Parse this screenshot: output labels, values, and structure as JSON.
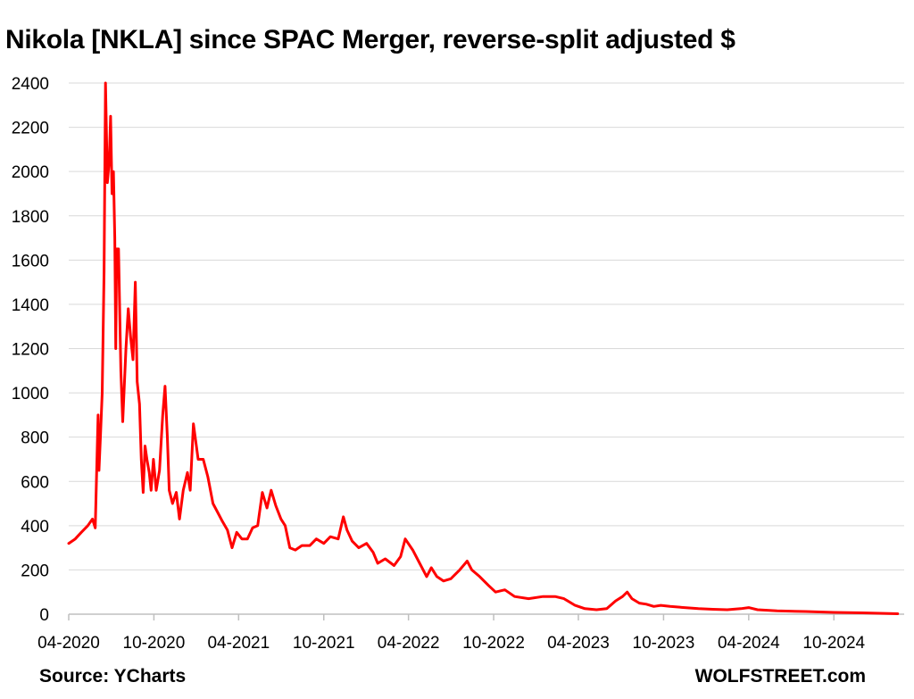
{
  "header": {
    "title": "Nikola [NKLA] since SPAC Merger, reverse-split adjusted $"
  },
  "footer": {
    "source": "Source: YCharts",
    "brand": "WOLFSTREET.com"
  },
  "colors": {
    "line": "#ff0000",
    "grid": "#d9d9d9",
    "axis": "#bfbfbf"
  },
  "chart_data": {
    "type": "line",
    "title": "Nikola [NKLA] since SPAC Merger, reverse-split adjusted $",
    "xlabel": "",
    "ylabel": "",
    "ylim": [
      0,
      2400
    ],
    "y_ticks": [
      0,
      200,
      400,
      600,
      800,
      1000,
      1200,
      1400,
      1600,
      1800,
      2000,
      2200,
      2400
    ],
    "x_ticks": [
      "04-2020",
      "10-2020",
      "04-2021",
      "10-2021",
      "04-2022",
      "10-2022",
      "04-2023",
      "10-2023",
      "04-2024",
      "10-2024"
    ],
    "grid": true,
    "legend": "none",
    "series": [
      {
        "color": "#ff0000",
        "points": [
          [
            "2020-04-01",
            320
          ],
          [
            "2020-04-15",
            340
          ],
          [
            "2020-04-28",
            370
          ],
          [
            "2020-05-12",
            400
          ],
          [
            "2020-05-22",
            430
          ],
          [
            "2020-05-28",
            390
          ],
          [
            "2020-06-03",
            900
          ],
          [
            "2020-06-05",
            650
          ],
          [
            "2020-06-08",
            800
          ],
          [
            "2020-06-12",
            1000
          ],
          [
            "2020-06-16",
            1550
          ],
          [
            "2020-06-19",
            2400
          ],
          [
            "2020-06-23",
            1950
          ],
          [
            "2020-06-27",
            2050
          ],
          [
            "2020-06-30",
            2250
          ],
          [
            "2020-07-03",
            1900
          ],
          [
            "2020-07-06",
            2000
          ],
          [
            "2020-07-09",
            1700
          ],
          [
            "2020-07-11",
            1200
          ],
          [
            "2020-07-13",
            1650
          ],
          [
            "2020-07-17",
            1650
          ],
          [
            "2020-07-22",
            1100
          ],
          [
            "2020-07-26",
            870
          ],
          [
            "2020-08-02",
            1200
          ],
          [
            "2020-08-07",
            1380
          ],
          [
            "2020-08-12",
            1250
          ],
          [
            "2020-08-17",
            1150
          ],
          [
            "2020-08-22",
            1500
          ],
          [
            "2020-08-26",
            1050
          ],
          [
            "2020-08-31",
            950
          ],
          [
            "2020-09-04",
            700
          ],
          [
            "2020-09-08",
            550
          ],
          [
            "2020-09-12",
            760
          ],
          [
            "2020-09-16",
            700
          ],
          [
            "2020-09-21",
            640
          ],
          [
            "2020-09-25",
            560
          ],
          [
            "2020-09-30",
            700
          ],
          [
            "2020-10-06",
            560
          ],
          [
            "2020-10-13",
            650
          ],
          [
            "2020-10-20",
            900
          ],
          [
            "2020-10-25",
            1030
          ],
          [
            "2020-10-30",
            800
          ],
          [
            "2020-11-03",
            560
          ],
          [
            "2020-11-10",
            500
          ],
          [
            "2020-11-18",
            550
          ],
          [
            "2020-11-25",
            430
          ],
          [
            "2020-12-03",
            560
          ],
          [
            "2020-12-12",
            640
          ],
          [
            "2020-12-18",
            560
          ],
          [
            "2020-12-25",
            860
          ],
          [
            "2021-01-04",
            700
          ],
          [
            "2021-01-15",
            700
          ],
          [
            "2021-01-25",
            620
          ],
          [
            "2021-02-05",
            500
          ],
          [
            "2021-02-15",
            460
          ],
          [
            "2021-02-25",
            420
          ],
          [
            "2021-03-08",
            380
          ],
          [
            "2021-03-18",
            300
          ],
          [
            "2021-03-28",
            370
          ],
          [
            "2021-04-08",
            340
          ],
          [
            "2021-04-20",
            340
          ],
          [
            "2021-05-01",
            390
          ],
          [
            "2021-05-12",
            400
          ],
          [
            "2021-05-22",
            550
          ],
          [
            "2021-06-01",
            480
          ],
          [
            "2021-06-10",
            560
          ],
          [
            "2021-06-20",
            490
          ],
          [
            "2021-07-01",
            430
          ],
          [
            "2021-07-10",
            400
          ],
          [
            "2021-07-20",
            300
          ],
          [
            "2021-08-01",
            290
          ],
          [
            "2021-08-15",
            310
          ],
          [
            "2021-09-01",
            310
          ],
          [
            "2021-09-15",
            340
          ],
          [
            "2021-10-01",
            320
          ],
          [
            "2021-10-15",
            350
          ],
          [
            "2021-11-01",
            340
          ],
          [
            "2021-11-12",
            440
          ],
          [
            "2021-11-20",
            380
          ],
          [
            "2021-12-01",
            330
          ],
          [
            "2021-12-15",
            300
          ],
          [
            "2022-01-01",
            320
          ],
          [
            "2022-01-15",
            280
          ],
          [
            "2022-01-25",
            230
          ],
          [
            "2022-02-10",
            250
          ],
          [
            "2022-03-01",
            220
          ],
          [
            "2022-03-15",
            260
          ],
          [
            "2022-03-25",
            340
          ],
          [
            "2022-04-10",
            290
          ],
          [
            "2022-04-25",
            230
          ],
          [
            "2022-05-10",
            170
          ],
          [
            "2022-05-20",
            210
          ],
          [
            "2022-06-01",
            170
          ],
          [
            "2022-06-15",
            150
          ],
          [
            "2022-07-01",
            160
          ],
          [
            "2022-07-20",
            200
          ],
          [
            "2022-08-05",
            240
          ],
          [
            "2022-08-15",
            200
          ],
          [
            "2022-09-01",
            170
          ],
          [
            "2022-09-20",
            130
          ],
          [
            "2022-10-05",
            100
          ],
          [
            "2022-10-25",
            110
          ],
          [
            "2022-11-15",
            80
          ],
          [
            "2022-12-15",
            70
          ],
          [
            "2023-01-15",
            80
          ],
          [
            "2023-02-10",
            80
          ],
          [
            "2023-03-01",
            70
          ],
          [
            "2023-03-25",
            40
          ],
          [
            "2023-04-15",
            25
          ],
          [
            "2023-05-10",
            20
          ],
          [
            "2023-06-01",
            25
          ],
          [
            "2023-06-20",
            60
          ],
          [
            "2023-07-05",
            80
          ],
          [
            "2023-07-15",
            100
          ],
          [
            "2023-07-25",
            70
          ],
          [
            "2023-08-10",
            50
          ],
          [
            "2023-08-25",
            45
          ],
          [
            "2023-09-10",
            35
          ],
          [
            "2023-09-25",
            40
          ],
          [
            "2023-10-15",
            35
          ],
          [
            "2023-11-15",
            30
          ],
          [
            "2023-12-15",
            25
          ],
          [
            "2024-01-15",
            22
          ],
          [
            "2024-02-15",
            20
          ],
          [
            "2024-03-15",
            25
          ],
          [
            "2024-04-01",
            30
          ],
          [
            "2024-04-20",
            20
          ],
          [
            "2024-06-01",
            15
          ],
          [
            "2024-08-01",
            12
          ],
          [
            "2024-10-01",
            8
          ],
          [
            "2024-12-01",
            6
          ],
          [
            "2025-02-15",
            2
          ]
        ]
      }
    ]
  }
}
